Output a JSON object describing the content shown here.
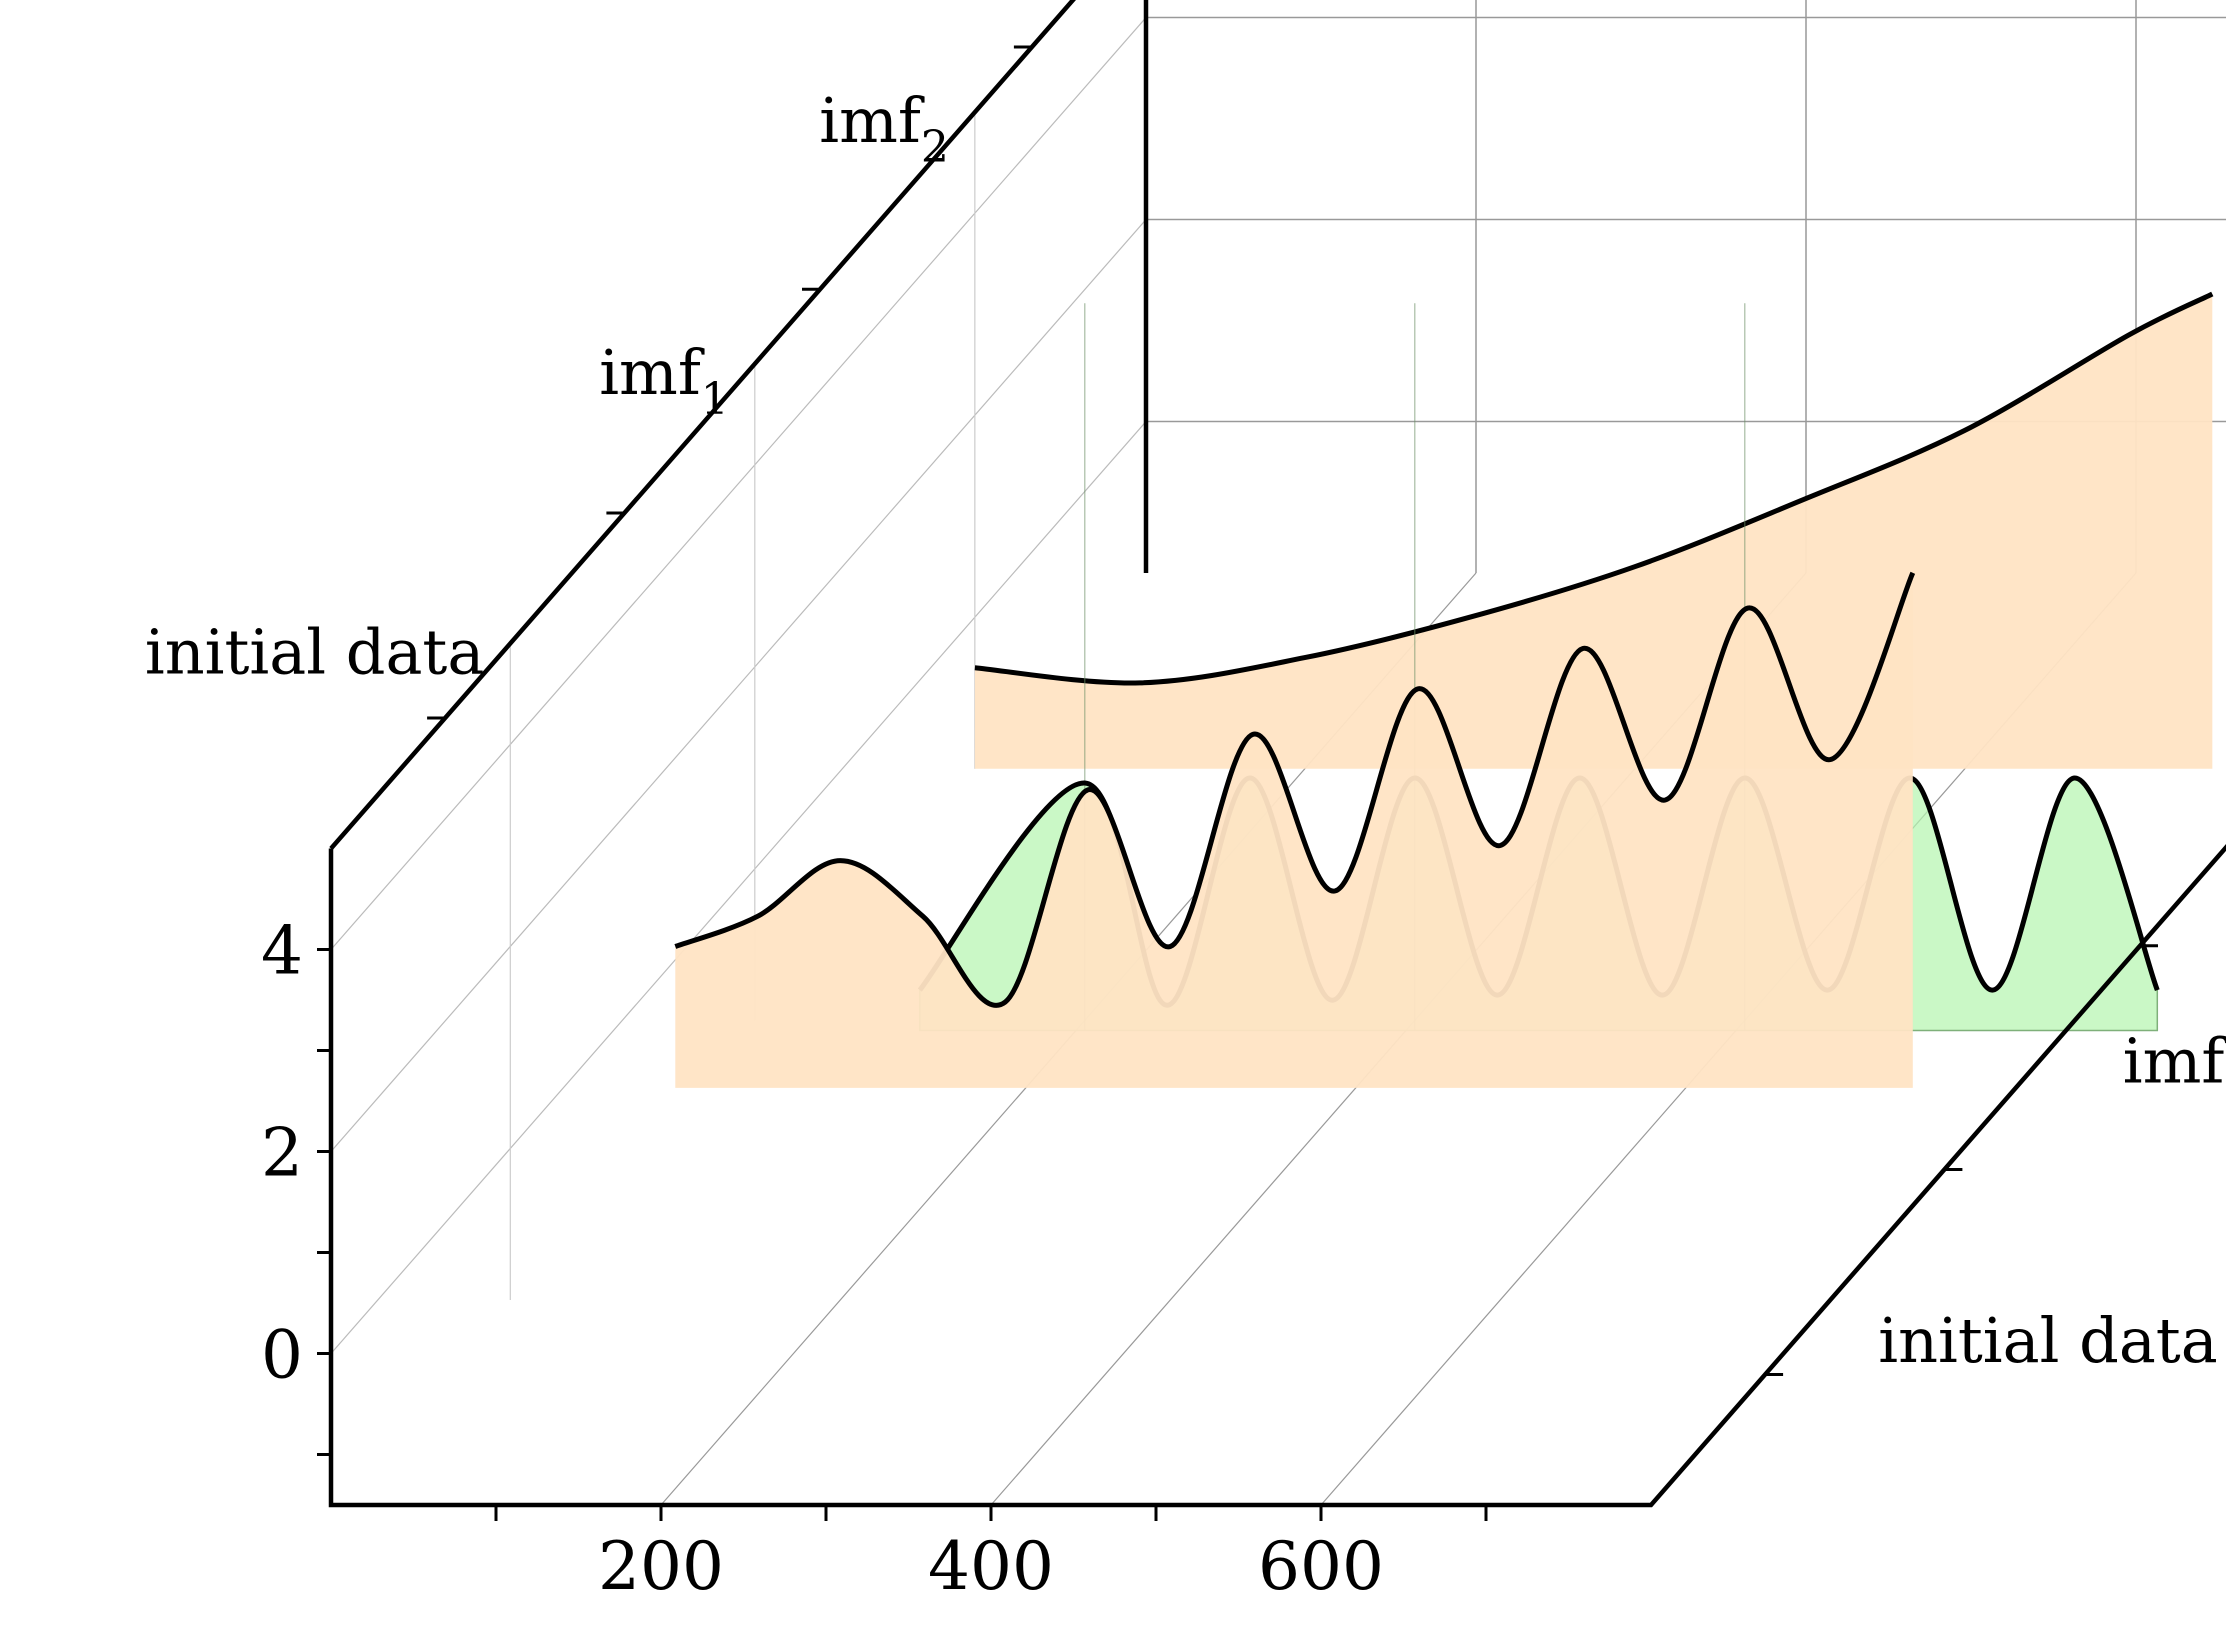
{
  "chart_data": {
    "type": "area",
    "view": "3d-waterfall",
    "x_ticks": [
      200,
      400,
      600
    ],
    "y_ticks": [
      0,
      2,
      4
    ],
    "ylim": [
      -1.5,
      5
    ],
    "xlim": [
      0,
      800
    ],
    "series": [
      {
        "key": "initial",
        "name": "initial data",
        "fill": "#ffe4c4",
        "x_start": 100,
        "x_end": 850,
        "min_y": 0.6,
        "points": [
          [
            100,
            2.0
          ],
          [
            150,
            2.3
          ],
          [
            200,
            2.85
          ],
          [
            250,
            2.3
          ],
          [
            300,
            1.45
          ],
          [
            350,
            3.55
          ],
          [
            400,
            2.0
          ],
          [
            450,
            4.1
          ],
          [
            500,
            2.55
          ],
          [
            550,
            4.55
          ],
          [
            600,
            3.0
          ],
          [
            650,
            4.95
          ],
          [
            700,
            3.45
          ],
          [
            750,
            5.35
          ],
          [
            800,
            3.85
          ],
          [
            850,
            5.7
          ]
        ]
      },
      {
        "key": "imf1",
        "name": "imf",
        "sub": "1",
        "fill": "#b4f5ae",
        "x_start": 100,
        "x_end": 850,
        "min_y": -1.6,
        "points": [
          [
            100,
            -1.2
          ],
          [
            200,
            0.85
          ],
          [
            250,
            -1.35
          ],
          [
            300,
            0.9
          ],
          [
            350,
            -1.3
          ],
          [
            400,
            0.9
          ],
          [
            450,
            -1.25
          ],
          [
            500,
            0.9
          ],
          [
            550,
            -1.25
          ],
          [
            600,
            0.9
          ],
          [
            650,
            -1.2
          ],
          [
            700,
            0.9
          ],
          [
            750,
            -1.2
          ],
          [
            800,
            0.9
          ],
          [
            850,
            -1.2
          ]
        ]
      },
      {
        "key": "imf2",
        "name": "imf",
        "sub": "2",
        "fill": "#ffe4c4",
        "x_start": 0,
        "x_end": 750,
        "min_y": -1.5,
        "points": [
          [
            0,
            -0.5
          ],
          [
            100,
            -0.65
          ],
          [
            200,
            -0.4
          ],
          [
            300,
            0.0
          ],
          [
            400,
            0.5
          ],
          [
            500,
            1.15
          ],
          [
            600,
            1.85
          ],
          [
            700,
            2.8
          ],
          [
            750,
            3.2
          ]
        ]
      }
    ]
  }
}
